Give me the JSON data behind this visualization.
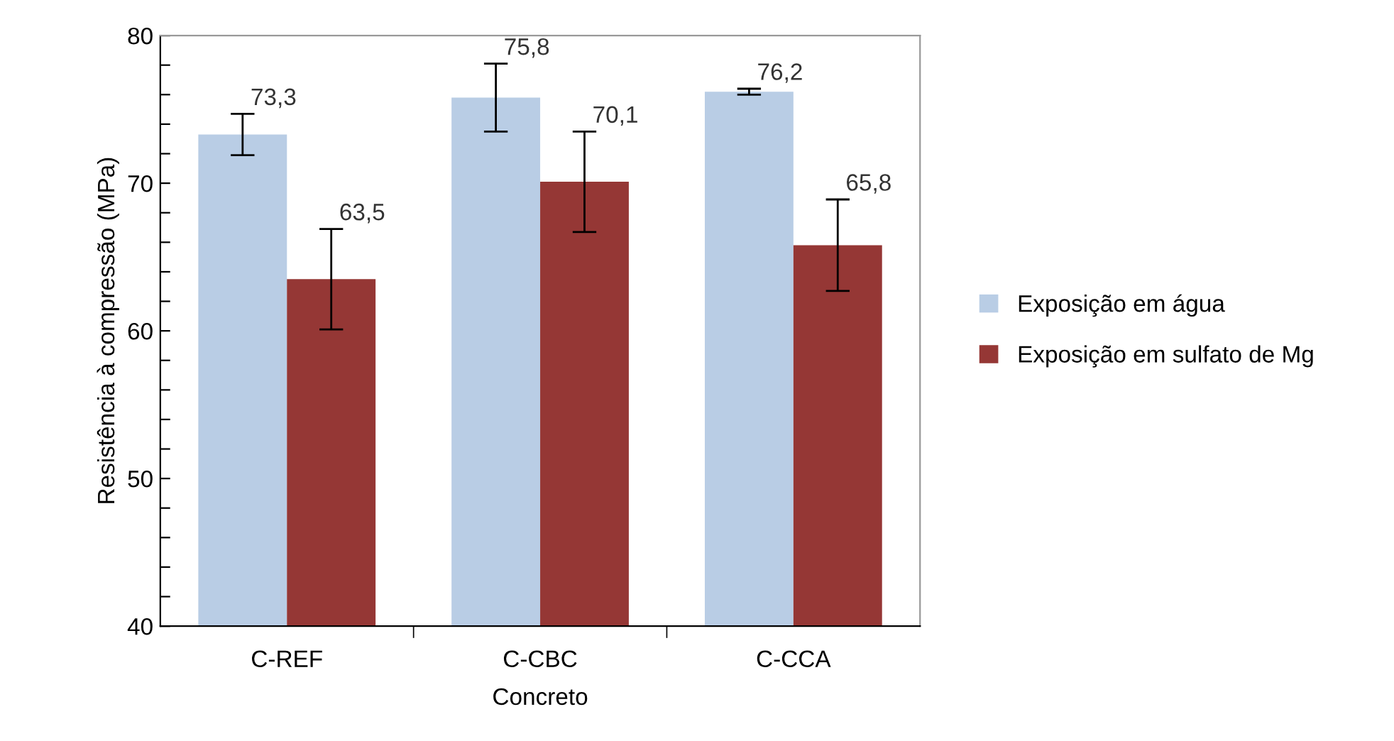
{
  "chart_data": {
    "type": "bar",
    "xlabel": "Concreto",
    "ylabel": "Resistência à compressão (MPa)",
    "categories": [
      "C-REF",
      "C-CBC",
      "C-CCA"
    ],
    "series": [
      {
        "name": "Exposição em água",
        "color": "#b9cde5",
        "values": [
          73.3,
          75.8,
          76.2
        ],
        "errors": [
          1.4,
          2.3,
          0.2
        ],
        "value_labels": [
          "73,3",
          "75,8",
          "76,2"
        ]
      },
      {
        "name": "Exposição em sulfato de Mg",
        "color": "#953735",
        "values": [
          63.5,
          70.1,
          65.8
        ],
        "errors": [
          3.4,
          3.4,
          3.1
        ],
        "value_labels": [
          "63,5",
          "70,1",
          "65,8"
        ]
      }
    ],
    "ylim": [
      40,
      80
    ],
    "yticks": [
      40,
      {
        "value": 42,
        "label": null
      },
      {
        "value": 44,
        "label": null
      },
      {
        "value": 46,
        "label": null
      },
      {
        "value": 48,
        "label": null
      },
      50,
      {
        "value": 52,
        "label": null
      },
      {
        "value": 54,
        "label": null
      },
      {
        "value": 56,
        "label": null
      },
      {
        "value": 58,
        "label": null
      },
      60,
      {
        "value": 62,
        "label": null
      },
      {
        "value": 64,
        "label": null
      },
      {
        "value": 66,
        "label": null
      },
      {
        "value": 68,
        "label": null
      },
      70,
      {
        "value": 72,
        "label": null
      },
      {
        "value": 74,
        "label": null
      },
      {
        "value": 76,
        "label": null
      },
      {
        "value": 78,
        "label": null
      },
      80
    ],
    "grid": false,
    "legend": "right"
  }
}
